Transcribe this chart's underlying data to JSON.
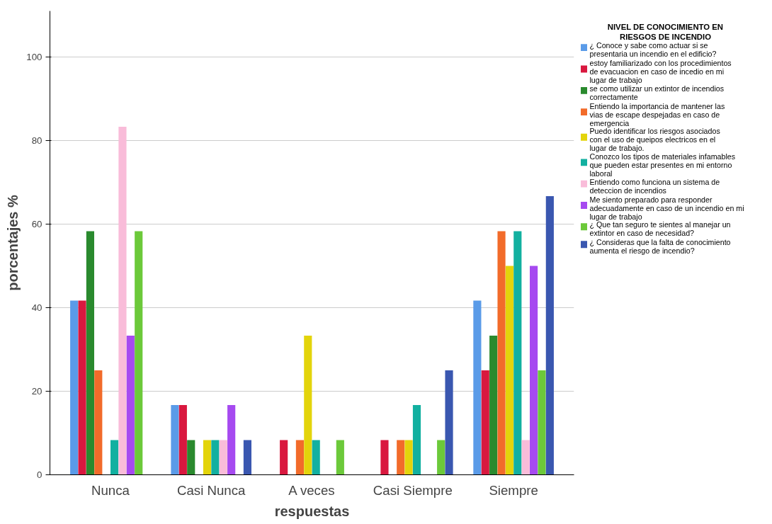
{
  "chart_data": {
    "type": "bar",
    "xlabel": "respuestas",
    "ylabel": "porcentajes %",
    "legend_title": "NIVEL DE CONOCIMIENTO EN RIESGOS DE INCENDIO",
    "categories": [
      "Nunca",
      "Casi Nunca",
      "A veces",
      "Casi Siempre",
      "Siempre"
    ],
    "ylim": [
      0,
      111
    ],
    "yticks": [
      0,
      20,
      40,
      60,
      80,
      100
    ],
    "grid": "y",
    "legend": "right",
    "series": [
      {
        "name": "¿ Conoce y sabe como actuar si se presentaria un incendio en el edificio?",
        "color": "#5a9be8",
        "values": [
          41.7,
          16.7,
          0,
          0,
          41.7
        ]
      },
      {
        "name": "estoy familiarizado con los procedimientos de evacuacion en caso de incedio en mi lugar de trabajo",
        "color": "#d9183f",
        "values": [
          41.7,
          16.7,
          8.3,
          8.3,
          25
        ]
      },
      {
        "name": "se como utilizar un extintor de incendios correctamente",
        "color": "#2a8a2e",
        "values": [
          58.3,
          8.3,
          0,
          0,
          33.3
        ]
      },
      {
        "name": "Entiendo la importancia de mantener las vias de escape despejadas en caso de emergencia",
        "color": "#f26b2a",
        "values": [
          25,
          0,
          8.3,
          8.3,
          58.3
        ]
      },
      {
        "name": "Puedo identificar los riesgos asociados con el uso de queipos electricos en el lugar de trabajo.",
        "color": "#e3d40b",
        "values": [
          0,
          8.3,
          33.3,
          8.3,
          50
        ]
      },
      {
        "name": "Conozco los tipos de materiales infamables que pueden estar presentes en mi entorno laboral",
        "color": "#12b0a0",
        "values": [
          8.3,
          8.3,
          8.3,
          16.7,
          58.3
        ]
      },
      {
        "name": "Entiendo como funciona un sistema de deteccion de incendios",
        "color": "#f9bcd9",
        "values": [
          83.3,
          8.3,
          0,
          0,
          8.3
        ]
      },
      {
        "name": "Me siento preparado para responder adecuadamente en caso de un incendio en mi lugar de trabajo",
        "color": "#a64af0",
        "values": [
          33.3,
          16.7,
          0,
          0,
          50
        ]
      },
      {
        "name": "¿ Que tan seguro te sientes al manejar un extintor en caso de necesidad?",
        "color": "#6cc93a",
        "values": [
          58.3,
          0,
          8.3,
          8.3,
          25
        ]
      },
      {
        "name": "¿ Consideras que la falta de conocimiento aumenta el riesgo de incendio?",
        "color": "#3a57b0",
        "values": [
          0,
          8.3,
          0,
          25,
          66.7
        ]
      }
    ]
  }
}
